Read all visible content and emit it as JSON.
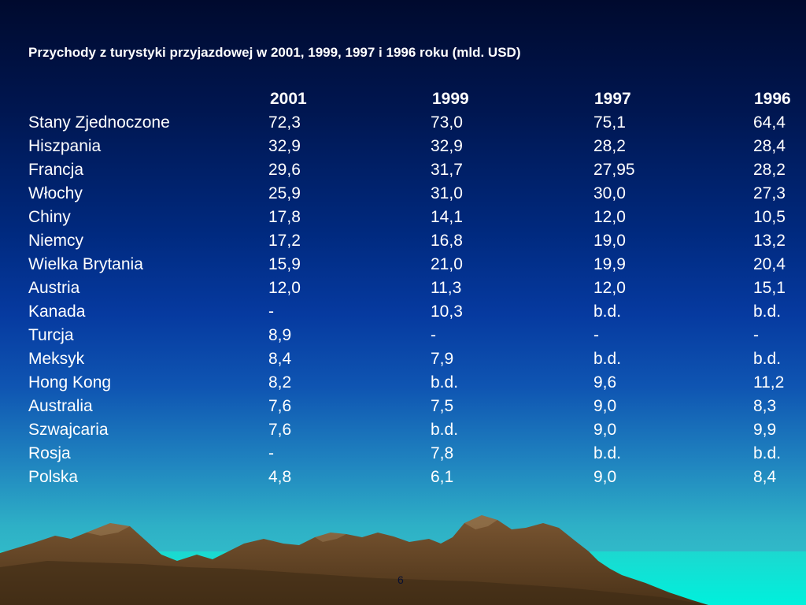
{
  "slide": {
    "title": "Przychody z turystyki przyjazdowej w 2001, 1999, 1997 i 1996 roku (mld. USD)",
    "page_number": "6"
  },
  "table": {
    "headers": [
      "",
      "2001",
      "1999",
      "1997",
      "1996"
    ],
    "rows": [
      [
        "Stany Zjednoczone",
        "72,3",
        "73,0",
        "75,1",
        "64,4"
      ],
      [
        "Hiszpania",
        "32,9",
        "32,9",
        "28,2",
        "28,4"
      ],
      [
        "Francja",
        "29,6",
        "31,7",
        "27,95",
        "28,2"
      ],
      [
        "Włochy",
        "25,9",
        "31,0",
        "30,0",
        "27,3"
      ],
      [
        "Chiny",
        "17,8",
        "14,1",
        "12,0",
        "10,5"
      ],
      [
        "Niemcy",
        "17,2",
        "16,8",
        "19,0",
        "13,2"
      ],
      [
        "Wielka Brytania",
        "15,9",
        "21,0",
        "19,9",
        "20,4"
      ],
      [
        "Austria",
        "12,0",
        "11,3",
        "12,0",
        "15,1"
      ],
      [
        "Kanada",
        "-",
        "10,3",
        "b.d.",
        "b.d."
      ],
      [
        "Turcja",
        "8,9",
        "-",
        "-",
        "-"
      ],
      [
        "Meksyk",
        "8,4",
        "7,9",
        "b.d.",
        "b.d."
      ],
      [
        "Hong Kong",
        "8,2",
        "b.d.",
        "9,6",
        "11,2"
      ],
      [
        "Australia",
        "7,6",
        "7,5",
        "9,0",
        "8,3"
      ],
      [
        "Szwajcaria",
        "7,6",
        "b.d.",
        "9,0",
        "9,9"
      ],
      [
        "Rosja",
        "-",
        "7,8",
        "b.d.",
        "b.d."
      ],
      [
        "Polska",
        "4,8",
        "6,1",
        "9,0",
        "8,4"
      ]
    ]
  },
  "colors": {
    "text": "#ffffff",
    "background_top": "#000a2e",
    "background_bottom": "#36cccc",
    "mountain": "#6b4a2a",
    "water": "#00e8d8"
  },
  "decoration": {
    "background_icon": "mountains-landscape-icon"
  }
}
